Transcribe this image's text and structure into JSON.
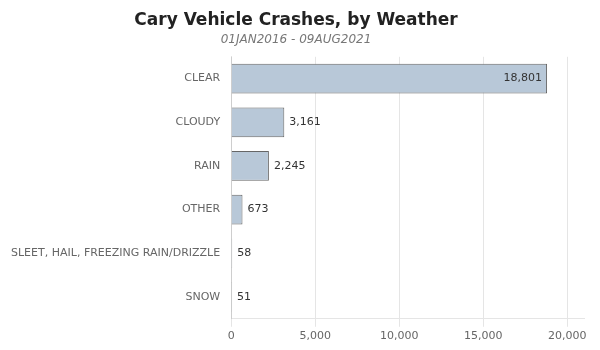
{
  "chart_data": {
    "type": "bar",
    "orientation": "horizontal",
    "title": "Cary Vehicle Crashes, by Weather",
    "subtitle": "01JAN2016 - 09AUG2021",
    "categories": [
      "CLEAR",
      "CLOUDY",
      "RAIN",
      "OTHER",
      "SLEET, HAIL, FREEZING RAIN/DRIZZLE",
      "SNOW"
    ],
    "values": [
      18801,
      3161,
      2245,
      673,
      58,
      51
    ],
    "value_labels": [
      "18,801",
      "3,161",
      "2,245",
      "673",
      "58",
      "51"
    ],
    "data_labels": true,
    "color": "#b8c8d8",
    "xlim": [
      0,
      21000
    ],
    "xticks": [
      0,
      {
        "value": 5000,
        "label": "5,000"
      },
      {
        "value": 10000,
        "label": "10,000"
      },
      {
        "value": 15000,
        "label": "15,000"
      },
      {
        "value": 20000,
        "label": "20,000"
      }
    ],
    "grid": true
  }
}
